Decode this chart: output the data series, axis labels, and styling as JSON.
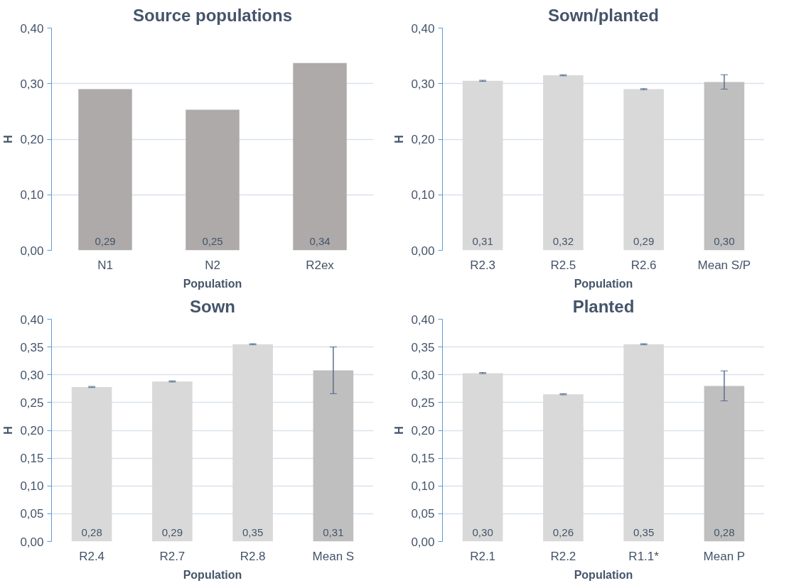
{
  "chart_data": [
    {
      "type": "bar",
      "title": "Source populations",
      "xlabel": "Population",
      "ylabel": "H",
      "categories": [
        "N1",
        "N2",
        "R2ex"
      ],
      "series": [
        {
          "color": "#aeaaaa",
          "values": [
            0.29,
            0.253,
            0.337
          ],
          "value_labels": [
            "0,29",
            "0,25",
            "0,34"
          ]
        }
      ],
      "ylim": [
        0,
        0.4
      ],
      "yticks": [
        {
          "value": 0,
          "label": "0,00"
        },
        {
          "value": 0.1,
          "label": "0,10"
        },
        {
          "value": 0.2,
          "label": "0,20"
        },
        {
          "value": 0.3,
          "label": "0,30"
        },
        {
          "value": 0.4,
          "label": "0,40"
        }
      ],
      "grid": "y"
    },
    {
      "type": "bar",
      "title": "Sown/planted",
      "xlabel": "Population",
      "ylabel": "H",
      "categories": [
        "R2.3",
        "R2.5",
        "R2.6",
        "Mean S/P"
      ],
      "series": [
        {
          "colors": [
            "#d9d9d9",
            "#d9d9d9",
            "#d9d9d9",
            "#bfbfbf"
          ],
          "values": [
            0.305,
            0.315,
            0.29,
            0.303
          ],
          "errors": [
            0.001,
            0.001,
            0.001,
            0.013
          ],
          "value_labels": [
            "0,31",
            "0,32",
            "0,29",
            "0,30"
          ]
        }
      ],
      "ylim": [
        0,
        0.4
      ],
      "yticks": [
        {
          "value": 0,
          "label": "0,00"
        },
        {
          "value": 0.1,
          "label": "0,10"
        },
        {
          "value": 0.2,
          "label": "0,20"
        },
        {
          "value": 0.3,
          "label": "0,30"
        },
        {
          "value": 0.4,
          "label": "0,40"
        }
      ],
      "grid": "y"
    },
    {
      "type": "bar",
      "title": "Sown",
      "xlabel": "Population",
      "ylabel": "H",
      "categories": [
        "R2.4",
        "R2.7",
        "R2.8",
        "Mean S"
      ],
      "series": [
        {
          "colors": [
            "#d9d9d9",
            "#d9d9d9",
            "#d9d9d9",
            "#bfbfbf"
          ],
          "values": [
            0.278,
            0.288,
            0.355,
            0.308
          ],
          "errors": [
            0.001,
            0.001,
            0.001,
            0.042
          ],
          "value_labels": [
            "0,28",
            "0,29",
            "0,35",
            "0,31"
          ]
        }
      ],
      "ylim": [
        0,
        0.4
      ],
      "yticks": [
        {
          "value": 0,
          "label": "0,00"
        },
        {
          "value": 0.05,
          "label": "0,05"
        },
        {
          "value": 0.1,
          "label": "0,10"
        },
        {
          "value": 0.15,
          "label": "0,15"
        },
        {
          "value": 0.2,
          "label": "0,20"
        },
        {
          "value": 0.25,
          "label": "0,25"
        },
        {
          "value": 0.3,
          "label": "0,30"
        },
        {
          "value": 0.35,
          "label": "0,35"
        },
        {
          "value": 0.4,
          "label": "0,40"
        }
      ],
      "grid": "y"
    },
    {
      "type": "bar",
      "title": "Planted",
      "xlabel": "Population",
      "ylabel": "H",
      "categories": [
        "R2.1",
        "R2.2",
        "R1.1*",
        "Mean P"
      ],
      "series": [
        {
          "colors": [
            "#d9d9d9",
            "#d9d9d9",
            "#d9d9d9",
            "#bfbfbf"
          ],
          "values": [
            0.303,
            0.265,
            0.355,
            0.28
          ],
          "errors": [
            0.001,
            0.001,
            0.001,
            0.027
          ],
          "value_labels": [
            "0,30",
            "0,26",
            "0,35",
            "0,28"
          ]
        }
      ],
      "ylim": [
        0,
        0.4
      ],
      "yticks": [
        {
          "value": 0,
          "label": "0,00"
        },
        {
          "value": 0.05,
          "label": "0,05"
        },
        {
          "value": 0.1,
          "label": "0,10"
        },
        {
          "value": 0.15,
          "label": "0,15"
        },
        {
          "value": 0.2,
          "label": "0,20"
        },
        {
          "value": 0.25,
          "label": "0,25"
        },
        {
          "value": 0.3,
          "label": "0,30"
        },
        {
          "value": 0.35,
          "label": "0,35"
        },
        {
          "value": 0.4,
          "label": "0,40"
        }
      ],
      "grid": "y"
    }
  ]
}
